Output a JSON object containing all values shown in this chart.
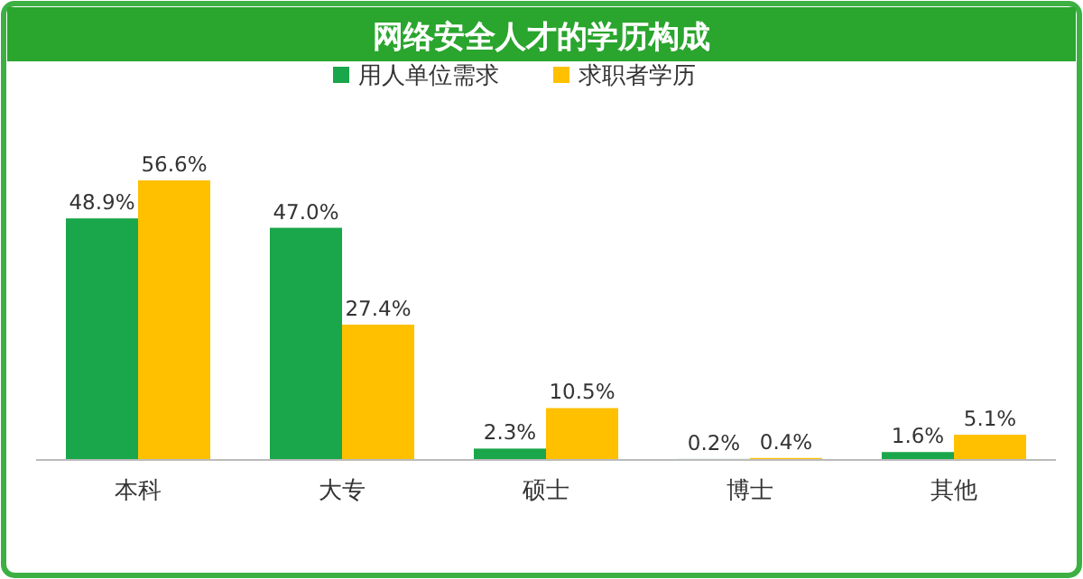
{
  "chart_data": {
    "type": "bar",
    "title": "网络安全人才的学历构成",
    "categories": [
      "本科",
      "大专",
      "硕士",
      "博士",
      "其他"
    ],
    "series": [
      {
        "name": "用人单位需求",
        "color": "#1aa64a",
        "values": [
          48.9,
          47.0,
          2.3,
          0.2,
          1.6
        ],
        "value_labels": [
          "48.9%",
          "47.0%",
          "2.3%",
          "0.2%",
          "1.6%"
        ]
      },
      {
        "name": "求职者学历",
        "color": "#ffc000",
        "values": [
          56.6,
          27.4,
          10.5,
          0.4,
          5.1
        ],
        "value_labels": [
          "56.6%",
          "27.4%",
          "10.5%",
          "0.4%",
          "5.1%"
        ]
      }
    ],
    "legend": "top"
  }
}
